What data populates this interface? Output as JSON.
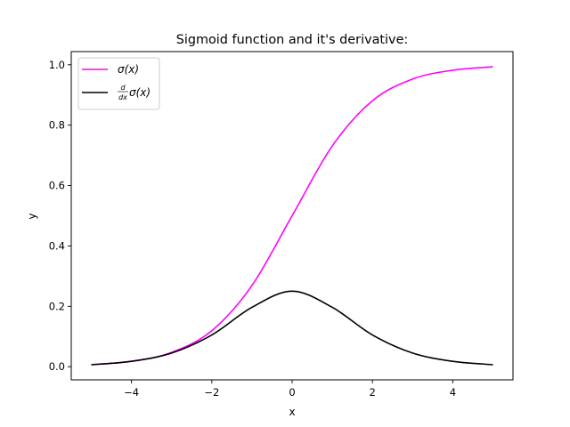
{
  "chart_data": {
    "type": "line",
    "title": "Sigmoid function and it's derivative:",
    "xlabel": "x",
    "ylabel": "y",
    "xlim": [
      -5.5,
      5.5
    ],
    "ylim": [
      -0.0436,
      1.0436
    ],
    "grid": false,
    "legend_position": "upper left",
    "x_ticks": [
      -4,
      -2,
      0,
      2,
      4
    ],
    "x_tick_labels": [
      "−4",
      "−2",
      "0",
      "2",
      "4"
    ],
    "y_ticks": [
      0.0,
      0.2,
      0.4,
      0.6,
      0.8,
      1.0
    ],
    "y_tick_labels": [
      "0.0",
      "0.2",
      "0.4",
      "0.6",
      "0.8",
      "1.0"
    ],
    "x": [
      -5,
      -4,
      -3,
      -2,
      -1,
      0,
      1,
      2,
      3,
      4,
      5
    ],
    "series": [
      {
        "name": "σ(x)",
        "color": "#ff00ff",
        "values": [
          0.0067,
          0.018,
          0.0474,
          0.1192,
          0.2689,
          0.5,
          0.7311,
          0.8808,
          0.9526,
          0.982,
          0.9933
        ]
      },
      {
        "name": "d/dx σ(x)",
        "color": "#000000",
        "values": [
          0.0066,
          0.0177,
          0.0452,
          0.105,
          0.1966,
          0.25,
          0.1966,
          0.105,
          0.0452,
          0.0177,
          0.0066
        ]
      }
    ]
  },
  "legend": {
    "item0_label": "σ(x)",
    "item1_frac_num": "d",
    "item1_frac_den": "dx",
    "item1_label": "σ(x)"
  }
}
